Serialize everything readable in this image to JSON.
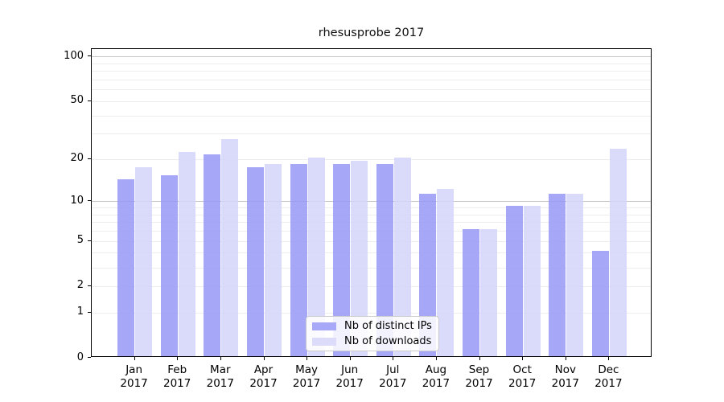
{
  "title": "rhesusprobe 2017",
  "chart_data": {
    "type": "bar",
    "title": "rhesusprobe 2017",
    "x_tick_year": "2017",
    "categories": [
      "Jan",
      "Feb",
      "Mar",
      "Apr",
      "May",
      "Jun",
      "Jul",
      "Aug",
      "Sep",
      "Oct",
      "Nov",
      "Dec"
    ],
    "series": [
      {
        "key": "distinct-ips",
        "name": "Nb of distinct IPs",
        "color": "#9898f7",
        "legend_color": "#a8a8f8",
        "values": [
          14,
          15,
          21,
          17,
          18,
          18,
          18,
          11,
          6,
          9,
          11,
          4
        ]
      },
      {
        "key": "downloads",
        "name": "Nb of downloads",
        "color": "#d3d3f9",
        "legend_color": "#dcdcfa",
        "values": [
          17,
          22,
          27,
          18,
          20,
          19,
          20,
          12,
          6,
          9,
          11,
          23
        ]
      }
    ],
    "y_axis": {
      "scale": "log1p",
      "tick_labels": [
        0,
        1,
        2,
        5,
        10,
        20,
        50,
        100
      ],
      "gridlines": [
        1,
        2,
        3,
        4,
        5,
        6,
        7,
        8,
        9,
        10,
        20,
        30,
        40,
        50,
        60,
        70,
        80,
        90,
        100
      ],
      "major_gridlines": [
        10,
        100
      ],
      "range": [
        0,
        110
      ],
      "grid": true
    },
    "legend": {
      "position": "lower-center"
    }
  },
  "colors": {
    "background": "#ffffff",
    "spine": "#000000",
    "grid_minor": "#ededed",
    "grid_major": "#c6c6c6",
    "bar_distinct_ips": "#a8a8f8",
    "bar_downloads": "#dcdcfa"
  }
}
